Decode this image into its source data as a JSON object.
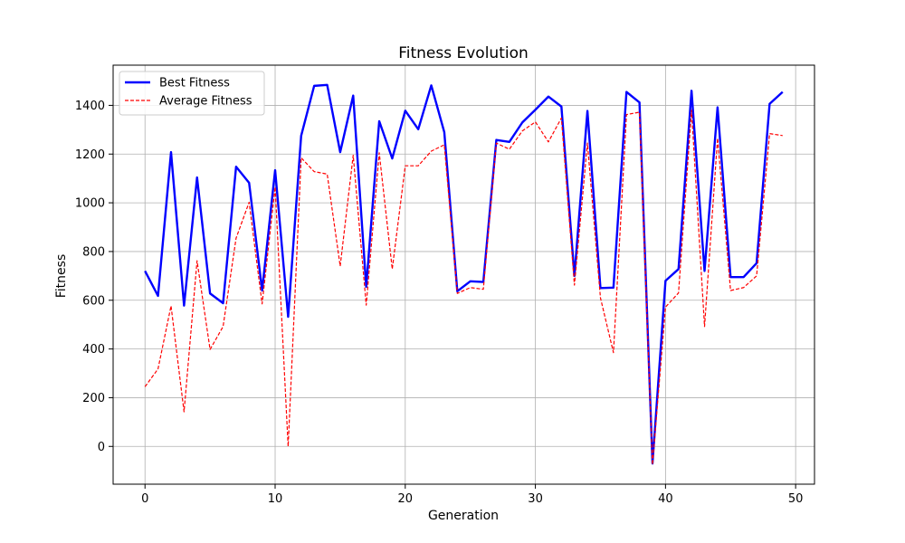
{
  "chart_data": {
    "type": "line",
    "title": "Fitness Evolution",
    "xlabel": "Generation",
    "ylabel": "Fitness",
    "xlim": [
      -2.45,
      51.45
    ],
    "ylim": [
      -155,
      1565
    ],
    "xticks": [
      0,
      10,
      20,
      30,
      40,
      50
    ],
    "yticks": [
      0,
      200,
      400,
      600,
      800,
      1000,
      1200,
      1400
    ],
    "grid": true,
    "legend_position": "upper-left",
    "x": [
      0,
      1,
      2,
      3,
      4,
      5,
      6,
      7,
      8,
      9,
      10,
      11,
      12,
      13,
      14,
      15,
      16,
      17,
      18,
      19,
      20,
      21,
      22,
      23,
      24,
      25,
      26,
      27,
      28,
      29,
      30,
      31,
      32,
      33,
      34,
      35,
      36,
      37,
      38,
      39,
      40,
      41,
      42,
      43,
      44,
      45,
      46,
      47,
      48,
      49
    ],
    "series": [
      {
        "name": "Best Fitness",
        "color": "#0000ff",
        "style": "solid",
        "values": [
          720,
          618,
          1208,
          578,
          1104,
          628,
          588,
          1148,
          1082,
          640,
          1134,
          532,
          1275,
          1480,
          1484,
          1208,
          1440,
          655,
          1335,
          1182,
          1378,
          1302,
          1482,
          1290,
          637,
          678,
          675,
          1258,
          1250,
          1330,
          1382,
          1436,
          1395,
          700,
          1377,
          650,
          652,
          1455,
          1412,
          -70,
          680,
          728,
          1460,
          720,
          1392,
          695,
          695,
          752,
          1406,
          1455
        ]
      },
      {
        "name": "Average Fitness",
        "color": "#ff0000",
        "style": "dashed",
        "values": [
          245,
          318,
          577,
          142,
          762,
          398,
          492,
          855,
          1002,
          585,
          1065,
          0,
          1185,
          1128,
          1118,
          740,
          1195,
          580,
          1205,
          728,
          1152,
          1152,
          1212,
          1238,
          628,
          652,
          645,
          1245,
          1220,
          1295,
          1332,
          1250,
          1348,
          662,
          1245,
          610,
          385,
          1362,
          1372,
          -75,
          572,
          630,
          1380,
          492,
          1265,
          640,
          652,
          700,
          1284,
          1276
        ]
      }
    ]
  }
}
